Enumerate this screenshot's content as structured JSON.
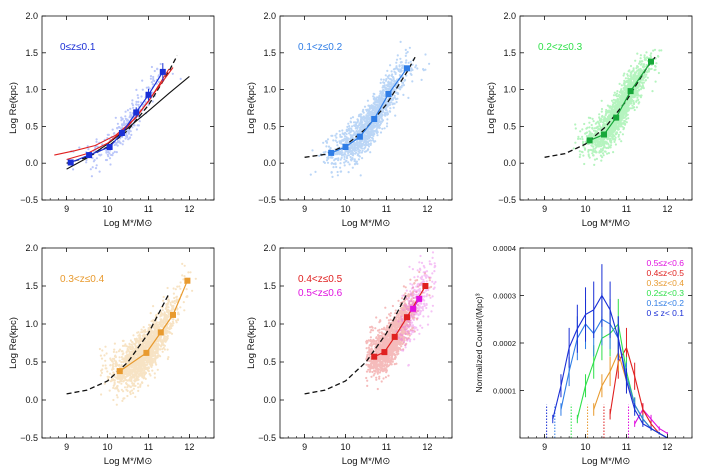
{
  "colors": {
    "p0": "#1a2fd6",
    "p0_points": "#3d5ef0",
    "p1": "#2f7de6",
    "p1_points": "#3f8be8",
    "p2": "#18a83a",
    "p2_points": "#2fe04a",
    "p3": "#e89a2e",
    "p3_points": "#eab25a",
    "p4": "#e02020",
    "p4_points": "#e44040",
    "p5": "#e010e0",
    "p5_points": "#e868e8"
  },
  "chart_data": [
    {
      "id": "p0",
      "type": "scatter",
      "xlabel": "Log M*/M⊙",
      "ylabel": "Log Re(kpc)",
      "xlim": [
        8.4,
        12.6
      ],
      "ylim": [
        -0.5,
        2.0
      ],
      "xticks": [
        "9",
        "10",
        "11",
        "12"
      ],
      "yticks": [
        "−0.5",
        "0.0",
        "0.5",
        "1.0",
        "1.5",
        "2.0"
      ],
      "legend": [
        {
          "text": "0≤z≤0.1",
          "color": "#1a2fd6"
        }
      ],
      "binned": {
        "x": [
          9.1,
          9.55,
          10.05,
          10.35,
          10.7,
          11.0,
          11.35
        ],
        "y": [
          0.01,
          0.11,
          0.22,
          0.41,
          0.69,
          0.93,
          1.24
        ],
        "err": [
          0.04,
          0.04,
          0.04,
          0.05,
          0.07,
          0.08,
          0.12
        ]
      },
      "fits": [
        {
          "style": "dashed",
          "color": "#111111",
          "x": [
            9.0,
            9.5,
            10.0,
            10.5,
            11.0,
            11.5,
            11.7
          ],
          "y": [
            0.0,
            0.08,
            0.22,
            0.45,
            0.79,
            1.25,
            1.46
          ]
        },
        {
          "style": "solid",
          "color": "#111111",
          "x": [
            9.0,
            9.5,
            10.0,
            10.5,
            11.0,
            11.5,
            12.0
          ],
          "y": [
            -0.08,
            0.07,
            0.26,
            0.48,
            0.71,
            0.95,
            1.18
          ]
        },
        {
          "style": "solid",
          "color": "#e02020",
          "x": [
            8.7,
            9.2,
            9.7,
            10.2,
            10.7,
            11.2,
            11.6
          ],
          "y": [
            0.11,
            0.17,
            0.24,
            0.38,
            0.62,
            1.0,
            1.3
          ]
        },
        {
          "style": "solid",
          "color": "#e02020",
          "x": [
            9.0,
            9.5,
            10.0,
            10.5,
            11.0,
            11.5
          ],
          "y": [
            0.05,
            0.13,
            0.27,
            0.5,
            0.84,
            1.28
          ]
        }
      ]
    },
    {
      "id": "p1",
      "type": "scatter",
      "xlabel": "Log M*/M⊙",
      "ylabel": "Log Re(kpc)",
      "xlim": [
        8.4,
        12.6
      ],
      "ylim": [
        -0.5,
        2.0
      ],
      "xticks": [
        "9",
        "10",
        "11",
        "12"
      ],
      "yticks": [
        "−0.5",
        "0.0",
        "0.5",
        "1.0",
        "1.5",
        "2.0"
      ],
      "legend": [
        {
          "text": "0.1<z≤0.2",
          "color": "#2f7de6"
        }
      ],
      "binned": {
        "x": [
          9.65,
          10.0,
          10.35,
          10.7,
          11.05,
          11.5
        ],
        "y": [
          0.14,
          0.22,
          0.36,
          0.6,
          0.94,
          1.29
        ],
        "err": [
          0,
          0,
          0,
          0,
          0,
          0
        ]
      },
      "fits": [
        {
          "style": "dashed",
          "color": "#111111",
          "x": [
            9.0,
            9.5,
            10.0,
            10.5,
            11.0,
            11.5,
            11.7
          ],
          "y": [
            0.08,
            0.12,
            0.24,
            0.47,
            0.8,
            1.24,
            1.44
          ]
        }
      ]
    },
    {
      "id": "p2",
      "type": "scatter",
      "xlabel": "Log M*/M⊙",
      "ylabel": "Log Re(kpc)",
      "xlim": [
        8.4,
        12.6
      ],
      "ylim": [
        -0.5,
        2.0
      ],
      "xticks": [
        "9",
        "10",
        "11",
        "12"
      ],
      "yticks": [
        "−0.5",
        "0.0",
        "0.5",
        "1.0",
        "1.5",
        "2.0"
      ],
      "legend": [
        {
          "text": "0.2<z≤0.3",
          "color": "#2fe04a"
        }
      ],
      "binned": {
        "x": [
          10.1,
          10.45,
          10.75,
          11.1,
          11.6
        ],
        "y": [
          0.31,
          0.39,
          0.62,
          0.98,
          1.38
        ],
        "err": [
          0,
          0,
          0,
          0,
          0
        ]
      },
      "fits": [
        {
          "style": "dashed",
          "color": "#111111",
          "x": [
            9.0,
            9.5,
            10.0,
            10.5,
            11.0,
            11.5,
            11.7
          ],
          "y": [
            0.08,
            0.13,
            0.26,
            0.5,
            0.85,
            1.3,
            1.44
          ]
        }
      ]
    },
    {
      "id": "p3",
      "type": "scatter",
      "xlabel": "Log M*/M⊙",
      "ylabel": "Log Re(kpc)",
      "xlim": [
        8.4,
        12.6
      ],
      "ylim": [
        -0.5,
        2.0
      ],
      "xticks": [
        "9",
        "10",
        "11",
        "12"
      ],
      "yticks": [
        "−0.5",
        "0.0",
        "0.5",
        "1.0",
        "1.5",
        "2.0"
      ],
      "legend": [
        {
          "text": "0.3<z≤0.4",
          "color": "#e89a2e"
        }
      ],
      "binned": {
        "x": [
          10.3,
          10.95,
          11.3,
          11.6,
          11.95
        ],
        "y": [
          0.38,
          0.62,
          0.89,
          1.12,
          1.57
        ],
        "err": [
          0,
          0,
          0,
          0,
          0
        ]
      },
      "fits": [
        {
          "style": "dashed",
          "color": "#111111",
          "x": [
            9.0,
            9.5,
            10.0,
            10.5,
            11.0,
            11.5
          ],
          "y": [
            0.08,
            0.13,
            0.25,
            0.5,
            0.88,
            1.4
          ]
        }
      ]
    },
    {
      "id": "p4",
      "type": "scatter",
      "xlabel": "Log M*/M⊙",
      "ylabel": "Log Re(kpc)",
      "xlim": [
        8.4,
        12.6
      ],
      "ylim": [
        -0.5,
        2.0
      ],
      "xticks": [
        "9",
        "10",
        "11",
        "12"
      ],
      "yticks": [
        "−0.5",
        "0.0",
        "0.5",
        "1.0",
        "1.5",
        "2.0"
      ],
      "legend": [
        {
          "text": "0.4<z≤0.5",
          "color": "#e02020"
        },
        {
          "text": "0.5<z≤0.6",
          "color": "#e010e0"
        }
      ],
      "binned": {
        "x": [
          10.7,
          10.95,
          11.2,
          11.5,
          11.95
        ],
        "y": [
          0.57,
          0.63,
          0.83,
          1.09,
          1.5
        ],
        "err": [
          0,
          0,
          0,
          0,
          0
        ]
      },
      "binned2": {
        "x": [
          11.65,
          11.8
        ],
        "y": [
          1.2,
          1.33
        ],
        "err": [
          0,
          0
        ]
      },
      "fits": [
        {
          "style": "dashed",
          "color": "#111111",
          "x": [
            9.0,
            9.5,
            10.0,
            10.5,
            11.0,
            11.5
          ],
          "y": [
            0.08,
            0.13,
            0.25,
            0.5,
            0.88,
            1.4
          ]
        }
      ]
    },
    {
      "id": "p5",
      "type": "line",
      "xlabel": "Log M*/M⊙",
      "ylabel": "Normalized Counts/(Mpc)³",
      "xlim": [
        8.4,
        12.6
      ],
      "ylim": [
        0,
        0.0004
      ],
      "xticks": [
        "9",
        "10",
        "11",
        "12"
      ],
      "yticks": [
        "0.0001",
        "0.0002",
        "0.0003",
        "0.0004"
      ],
      "legend": [
        {
          "text": "0.5≤z<0.6",
          "color": "#e010e0"
        },
        {
          "text": "0.4≤z<0.5",
          "color": "#e02020"
        },
        {
          "text": "0.3≤z<0.4",
          "color": "#e89a2e"
        },
        {
          "text": "0.2≤z<0.3",
          "color": "#2fe04a"
        },
        {
          "text": "0.1≤z<0.2",
          "color": "#2f7de6"
        },
        {
          "text": "0 ≤ z< 0.1",
          "color": "#1a2fd6"
        }
      ],
      "x": [
        9.0,
        9.2,
        9.4,
        9.6,
        9.8,
        10.0,
        10.2,
        10.4,
        10.6,
        10.8,
        11.0,
        11.2,
        11.4,
        11.6,
        11.8,
        12.0
      ],
      "series": [
        {
          "name": "0.5≤z<0.6",
          "color": "#e010e0",
          "values": [
            null,
            null,
            null,
            null,
            null,
            null,
            null,
            null,
            null,
            null,
            null,
            3e-05,
            6e-05,
            4e-05,
            2e-05,
            1e-05
          ]
        },
        {
          "name": "0.4≤z<0.5",
          "color": "#e02020",
          "values": [
            null,
            null,
            null,
            null,
            null,
            null,
            null,
            null,
            5e-05,
            0.00016,
            0.00019,
            0.00013,
            6e-05,
            3e-05,
            1e-05,
            0.0
          ]
        },
        {
          "name": "0.3≤z<0.4",
          "color": "#e89a2e",
          "values": [
            null,
            null,
            null,
            null,
            null,
            null,
            6e-05,
            0.00011,
            0.00014,
            0.00018,
            0.00012,
            7e-05,
            4e-05,
            2e-05,
            1e-05,
            0.0
          ]
        },
        {
          "name": "0.2≤z<0.3",
          "color": "#2fe04a",
          "values": [
            null,
            null,
            null,
            null,
            4e-05,
            0.00011,
            0.00016,
            0.00021,
            0.00022,
            0.00024,
            0.00014,
            7e-05,
            4e-05,
            2e-05,
            1e-05,
            0.0
          ]
        },
        {
          "name": "0.1≤z<0.2",
          "color": "#2f7de6",
          "values": [
            null,
            null,
            6e-05,
            0.00014,
            0.00021,
            0.00024,
            0.00022,
            0.00025,
            0.00024,
            0.00021,
            0.00013,
            7e-05,
            4e-05,
            2e-05,
            1e-05,
            0.0
          ]
        },
        {
          "name": "0 ≤ z< 0.1",
          "color": "#1a2fd6",
          "values": [
            null,
            4e-05,
            0.00011,
            0.00019,
            0.00023,
            0.00026,
            0.00027,
            0.0003,
            0.00027,
            0.00021,
            0.00012,
            6e-05,
            3e-05,
            2e-05,
            1e-05,
            0.0
          ]
        }
      ]
    }
  ]
}
